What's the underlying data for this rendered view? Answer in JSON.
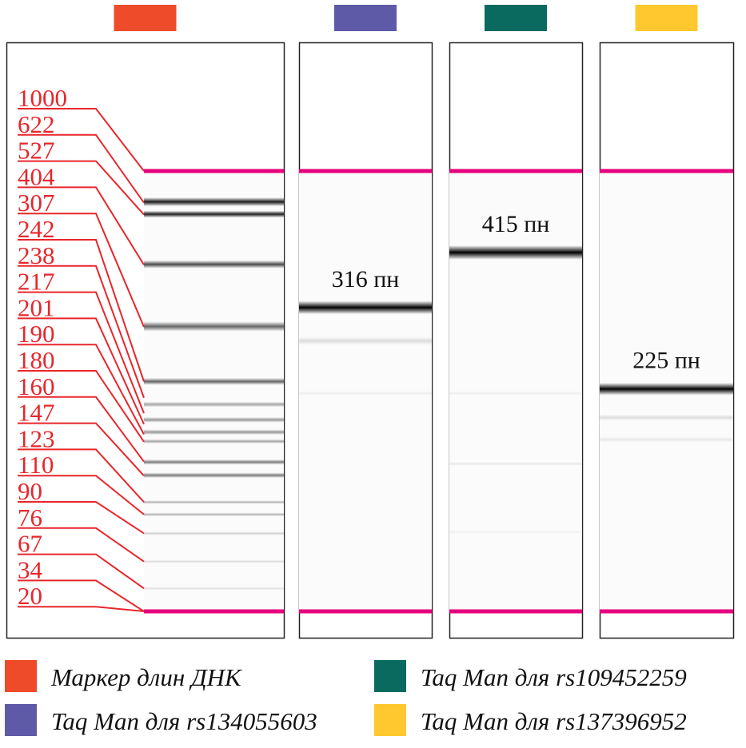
{
  "colors": {
    "marker": "#EE4B2B",
    "rs134055603": "#5E5AA8",
    "rs109452259": "#0A6A60",
    "rs137396952": "#FFC82E",
    "boundary": "#E6007E",
    "ladder_label": "#E8262B",
    "frame": "#222222"
  },
  "marker_ladder": {
    "sizes_bp": [
      "1000",
      "622",
      "527",
      "404",
      "307",
      "242",
      "238",
      "217",
      "201",
      "190",
      "180",
      "160",
      "147",
      "123",
      "110",
      "90",
      "76",
      "67",
      "34",
      "20"
    ]
  },
  "lanes": [
    {
      "id": "marker",
      "color_key": "marker",
      "bands": [
        {
          "pos": 0.07,
          "intensity": 0.9,
          "width": 0.02
        },
        {
          "pos": 0.098,
          "intensity": 0.88,
          "width": 0.016
        },
        {
          "pos": 0.212,
          "intensity": 0.7,
          "width": 0.018
        },
        {
          "pos": 0.353,
          "intensity": 0.6,
          "width": 0.022
        },
        {
          "pos": 0.478,
          "intensity": 0.6,
          "width": 0.016
        },
        {
          "pos": 0.53,
          "intensity": 0.35,
          "width": 0.012
        },
        {
          "pos": 0.565,
          "intensity": 0.4,
          "width": 0.012
        },
        {
          "pos": 0.593,
          "intensity": 0.4,
          "width": 0.012
        },
        {
          "pos": 0.614,
          "intensity": 0.35,
          "width": 0.01
        },
        {
          "pos": 0.661,
          "intensity": 0.5,
          "width": 0.012
        },
        {
          "pos": 0.691,
          "intensity": 0.5,
          "width": 0.012
        },
        {
          "pos": 0.752,
          "intensity": 0.3,
          "width": 0.008
        },
        {
          "pos": 0.78,
          "intensity": 0.3,
          "width": 0.008
        },
        {
          "pos": 0.823,
          "intensity": 0.18,
          "width": 0.008
        },
        {
          "pos": 0.887,
          "intensity": 0.12,
          "width": 0.008
        },
        {
          "pos": 0.948,
          "intensity": 0.1,
          "width": 0.008
        }
      ]
    },
    {
      "id": "rs134055603",
      "color_key": "rs134055603",
      "product_label": "316 пн",
      "bands": [
        {
          "pos": 0.31,
          "intensity": 1.0,
          "width": 0.03
        },
        {
          "pos": 0.386,
          "intensity": 0.12,
          "width": 0.018
        },
        {
          "pos": 0.505,
          "intensity": 0.05,
          "width": 0.01
        }
      ]
    },
    {
      "id": "rs109452259",
      "color_key": "rs109452259",
      "product_label": "415 пн",
      "bands": [
        {
          "pos": 0.185,
          "intensity": 1.0,
          "width": 0.032
        },
        {
          "pos": 0.505,
          "intensity": 0.05,
          "width": 0.01
        },
        {
          "pos": 0.665,
          "intensity": 0.08,
          "width": 0.008
        },
        {
          "pos": 0.82,
          "intensity": 0.04,
          "width": 0.008
        }
      ]
    },
    {
      "id": "rs137396952",
      "color_key": "rs137396952",
      "product_label": "225 пн",
      "bands": [
        {
          "pos": 0.495,
          "intensity": 1.0,
          "width": 0.028
        },
        {
          "pos": 0.56,
          "intensity": 0.12,
          "width": 0.014
        },
        {
          "pos": 0.61,
          "intensity": 0.08,
          "width": 0.012
        }
      ]
    }
  ],
  "legend": [
    {
      "color_key": "marker",
      "label": "Маркер длин ДНК"
    },
    {
      "color_key": "rs109452259",
      "label": "Taq Man для rs109452259"
    },
    {
      "color_key": "rs134055603",
      "label": "Taq Man для rs134055603"
    },
    {
      "color_key": "rs137396952",
      "label": "Taq Man для rs137396952"
    }
  ]
}
